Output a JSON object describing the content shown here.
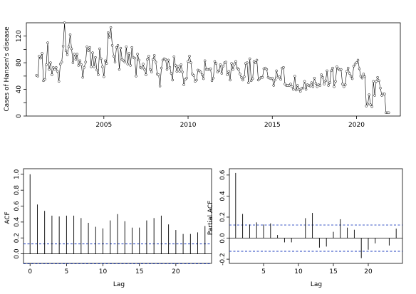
{
  "chart_data": [
    {
      "type": "line",
      "title": "",
      "xlabel": "",
      "ylabel": "Cases of Hansen's disease",
      "xlim": [
        2000.4,
        2022.6
      ],
      "ylim": [
        0,
        140
      ],
      "x_ticks": [
        2005,
        2010,
        2015,
        2020
      ],
      "y_ticks": [
        0,
        20,
        40,
        60,
        80,
        100,
        120
      ],
      "y_tick_labels": [
        "0",
        "20",
        "40",
        "60",
        "80",
        "100",
        "120"
      ],
      "grid": false,
      "markers": "open-circle",
      "x_start": 2001.0,
      "x_step": 0.083333,
      "series": [
        {
          "values": [
            61,
            60,
            90,
            87,
            94,
            53,
            55,
            77,
            110,
            70,
            80,
            62,
            73,
            70,
            73,
            67,
            52,
            78,
            81,
            105,
            140,
            98,
            92,
            104,
            122,
            101,
            80,
            93,
            85,
            93,
            76,
            83,
            77,
            58,
            73,
            81,
            104,
            98,
            103,
            74,
            95,
            74,
            88,
            69,
            62,
            101,
            86,
            74,
            59,
            83,
            79,
            125,
            118,
            133,
            106,
            90,
            81,
            103,
            106,
            70,
            102,
            85,
            83,
            81,
            104,
            78,
            94,
            76,
            103,
            88,
            87,
            60,
            93,
            84,
            73,
            72,
            78,
            70,
            62,
            85,
            90,
            70,
            66,
            85,
            91,
            81,
            63,
            62,
            45,
            72,
            84,
            86,
            85,
            70,
            84,
            73,
            64,
            54,
            89,
            76,
            67,
            75,
            67,
            77,
            66,
            47,
            55,
            57,
            82,
            90,
            80,
            63,
            61,
            52,
            54,
            69,
            68,
            66,
            62,
            56,
            83,
            70,
            70,
            70,
            71,
            53,
            57,
            82,
            79,
            66,
            68,
            77,
            64,
            75,
            80,
            81,
            62,
            67,
            54,
            79,
            70,
            78,
            82,
            72,
            70,
            63,
            58,
            54,
            59,
            79,
            80,
            50,
            86,
            53,
            56,
            82,
            80,
            84,
            54,
            56,
            58,
            58,
            71,
            72,
            70,
            58,
            57,
            56,
            57,
            46,
            54,
            68,
            58,
            59,
            55,
            72,
            73,
            48,
            46,
            46,
            46,
            48,
            44,
            40,
            60,
            39,
            46,
            40,
            37,
            42,
            42,
            52,
            40,
            47,
            46,
            45,
            50,
            44,
            57,
            49,
            44,
            47,
            46,
            62,
            58,
            48,
            53,
            68,
            46,
            50,
            68,
            72,
            44,
            52,
            74,
            71,
            69,
            70,
            48,
            44,
            47,
            67,
            72,
            64,
            60,
            56,
            75,
            78,
            80,
            84,
            71,
            60,
            57,
            63,
            59,
            15,
            18,
            32,
            17,
            14,
            52,
            31,
            52,
            58,
            53,
            42,
            31,
            33,
            33,
            5,
            5,
            5
          ]
        }
      ]
    },
    {
      "type": "bar",
      "title": "",
      "xlabel": "Lag",
      "ylabel": "ACF",
      "xlim": [
        -0.9,
        24.9
      ],
      "ylim": [
        -0.12,
        1.07
      ],
      "x_ticks": [
        0,
        5,
        10,
        15,
        20
      ],
      "y_ticks": [
        0.0,
        0.2,
        0.4,
        0.6,
        0.8,
        1.0
      ],
      "y_tick_labels": [
        "0.0",
        "0.2",
        "0.4",
        "0.6",
        "0.8",
        "1.0"
      ],
      "confidence_band": 0.125,
      "lags": [
        0,
        1,
        2,
        3,
        4,
        5,
        6,
        7,
        8,
        9,
        10,
        11,
        12,
        13,
        14,
        15,
        16,
        17,
        18,
        19,
        20,
        21,
        22,
        23,
        24
      ],
      "values": [
        1.0,
        0.62,
        0.54,
        0.48,
        0.47,
        0.48,
        0.48,
        0.45,
        0.39,
        0.34,
        0.32,
        0.42,
        0.5,
        0.41,
        0.33,
        0.33,
        0.42,
        0.45,
        0.48,
        0.37,
        0.3,
        0.25,
        0.25,
        0.27,
        0.35
      ]
    },
    {
      "type": "bar",
      "title": "",
      "xlabel": "Lag",
      "ylabel": "Partial ACF",
      "xlim": [
        0.1,
        24.9
      ],
      "ylim": [
        -0.24,
        0.66
      ],
      "x_ticks": [
        5,
        10,
        15,
        20
      ],
      "y_ticks": [
        -0.2,
        0.0,
        0.2,
        0.4,
        0.6
      ],
      "y_tick_labels": [
        "-0.2",
        "0.0",
        "0.2",
        "0.4",
        "0.6"
      ],
      "confidence_band": 0.125,
      "lags": [
        1,
        2,
        3,
        4,
        5,
        6,
        7,
        8,
        9,
        10,
        11,
        12,
        13,
        14,
        15,
        16,
        17,
        18,
        19,
        20,
        21,
        22,
        23,
        24
      ],
      "values": [
        0.62,
        0.23,
        0.13,
        0.15,
        0.13,
        0.14,
        0.03,
        -0.04,
        -0.04,
        0.0,
        0.19,
        0.24,
        -0.09,
        -0.08,
        0.06,
        0.18,
        0.1,
        0.08,
        -0.19,
        -0.11,
        -0.05,
        0.0,
        -0.07,
        0.09
      ]
    }
  ]
}
